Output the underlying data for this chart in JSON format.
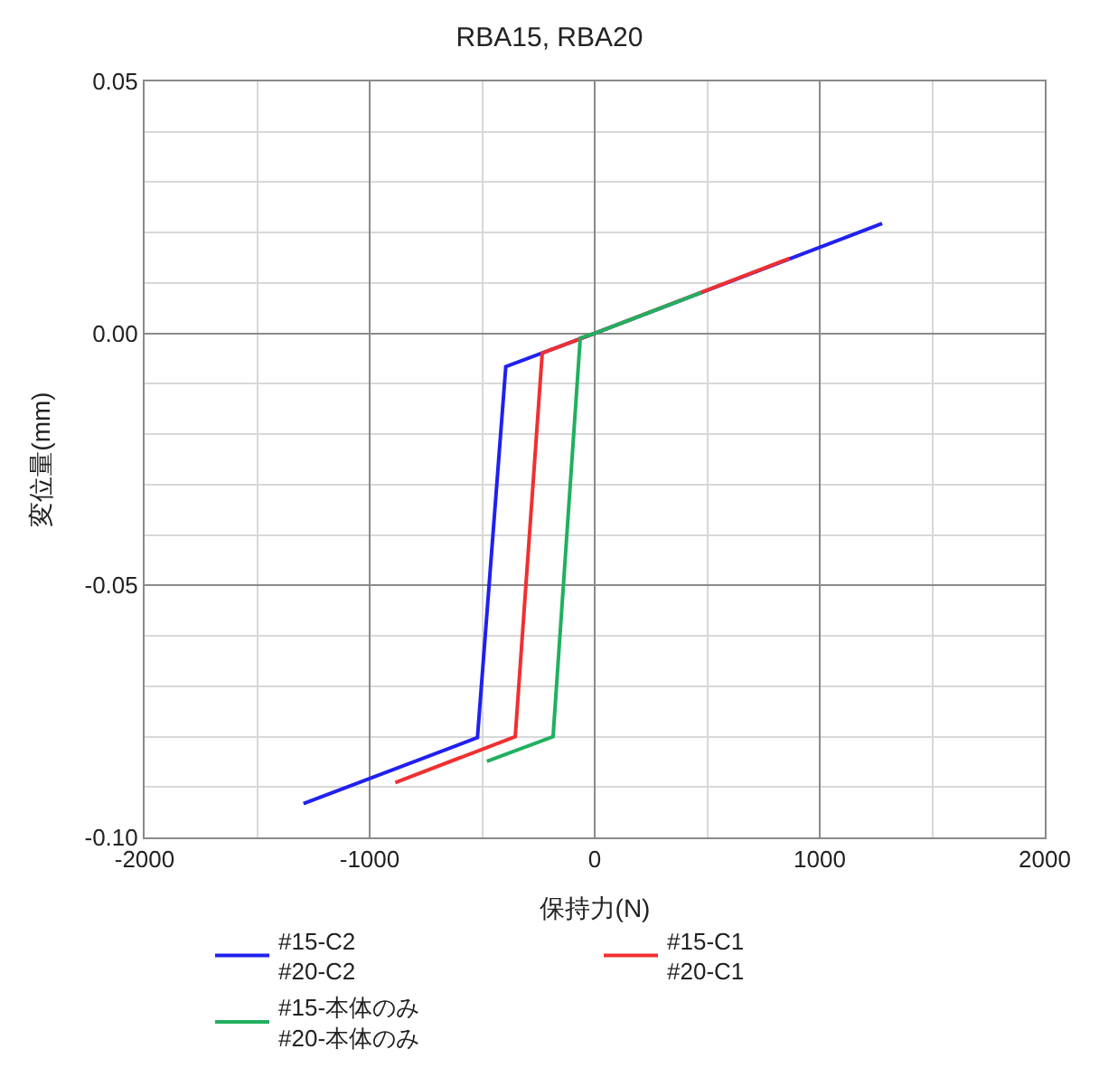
{
  "chart_data": {
    "type": "line",
    "title": "RBA15, RBA20",
    "xlabel": "保持力(N)",
    "ylabel": "変位量(mm)",
    "xlim": [
      -2000,
      2000
    ],
    "xticks": [
      -2000,
      -1000,
      0,
      1000,
      2000
    ],
    "ylim": [
      -0.1,
      0.05
    ],
    "yticks": [
      {
        "value": 0.05,
        "label": "0.05"
      },
      {
        "value": 0,
        "label": "0.00"
      },
      {
        "value": -0.05,
        "label": "-0.05"
      },
      {
        "value": -0.1,
        "label": "-0.10"
      }
    ],
    "grid": true,
    "legend": "bottom",
    "marker": "none",
    "line_style": "solid",
    "series": [
      {
        "name": "#15-C2\n#20-C2",
        "color": "#2020f0",
        "x": [
          1277,
          0,
          -395,
          -521,
          -1294
        ],
        "values": [
          0.0218,
          0,
          -0.0066,
          -0.0802,
          -0.0933
        ]
      },
      {
        "name": "#15-C1\n#20-C1",
        "color": "#f03030",
        "x": [
          866,
          0,
          -233,
          -353,
          -886
        ],
        "values": [
          0.0149,
          0,
          -0.0039,
          -0.08,
          -0.0891
        ]
      },
      {
        "name": "#15-本体のみ\n#20-本体のみ",
        "color": "#20b060",
        "x": [
          473,
          0,
          -64,
          -185,
          -479
        ],
        "values": [
          0.0081,
          0,
          -0.0009,
          -0.08,
          -0.0849
        ]
      }
    ]
  }
}
